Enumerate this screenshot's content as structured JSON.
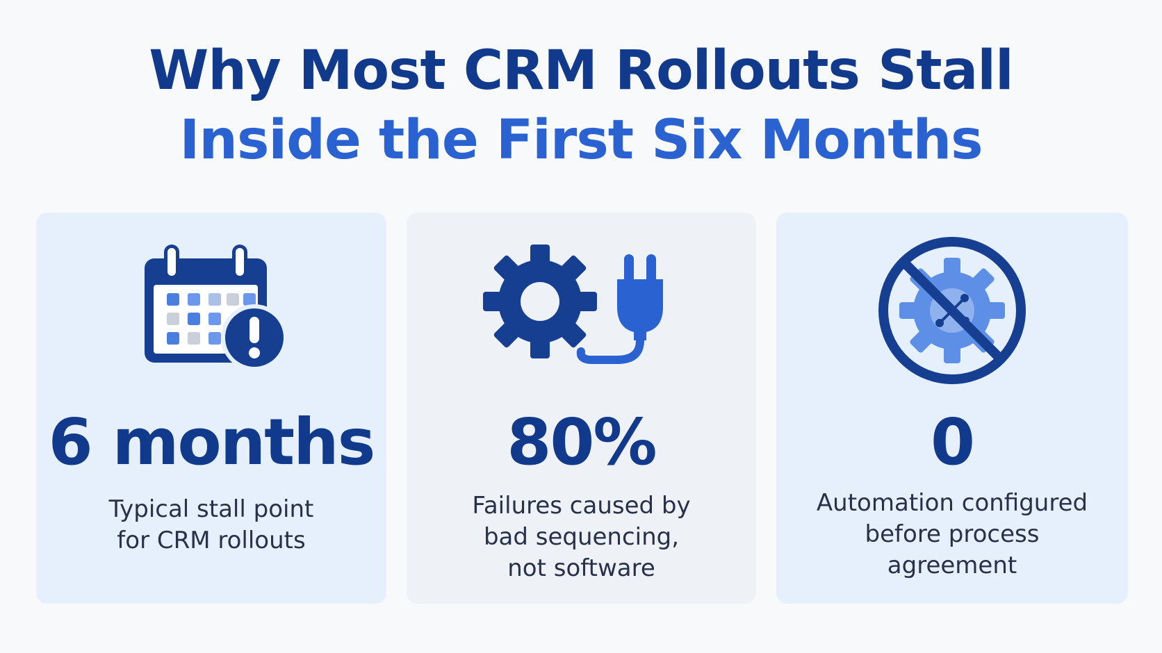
{
  "title": {
    "line1": "Why Most CRM Rollouts Stall",
    "line2": "Inside the First Six Months"
  },
  "colors": {
    "navy": "#123a8c",
    "accent_blue": "#2a63d1",
    "card_light_blue": "#e5f0fc",
    "card_light_gray": "#eef1f6"
  },
  "cards": [
    {
      "icon": "calendar-alert-icon",
      "stat": "6 months",
      "description": [
        "Typical stall point",
        "for CRM rollouts"
      ]
    },
    {
      "icon": "gear-plug-icon",
      "stat": "80%",
      "description": [
        "Failures caused by",
        "bad sequencing,",
        "not software"
      ]
    },
    {
      "icon": "no-automation-icon",
      "stat": "0",
      "description": [
        "Automation configured",
        "before process",
        "agreement"
      ]
    }
  ]
}
